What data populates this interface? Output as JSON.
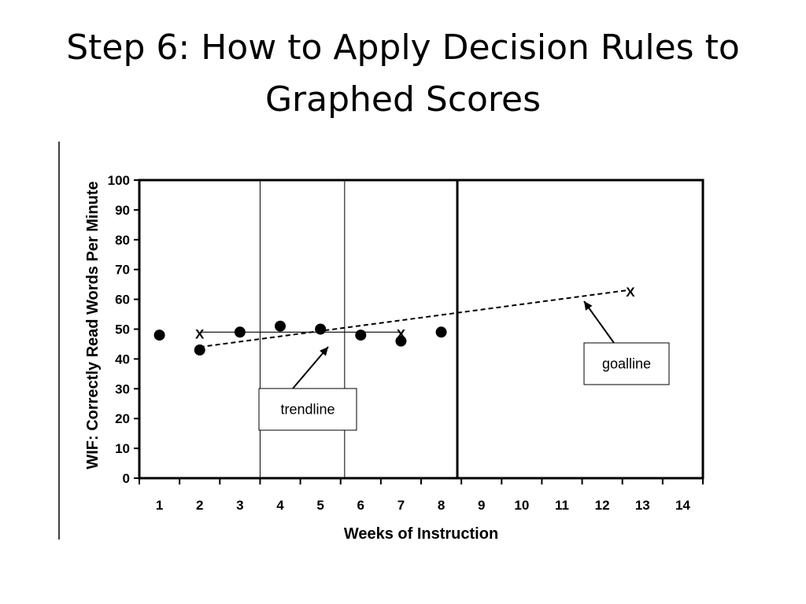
{
  "slide": {
    "title_line1": "Step 6: How to Apply Decision Rules to",
    "title_line2": "Graphed Scores"
  },
  "chart_data": {
    "type": "scatter",
    "xlabel": "Weeks of Instruction",
    "ylabel": "WIF: Correctly Read Words Per Minute",
    "xlim": [
      0.5,
      14.5
    ],
    "ylim": [
      0,
      100
    ],
    "x_ticks": [
      1,
      2,
      3,
      4,
      5,
      6,
      7,
      8,
      9,
      10,
      11,
      12,
      13,
      14
    ],
    "y_ticks": [
      0,
      10,
      20,
      30,
      40,
      50,
      60,
      70,
      80,
      90,
      100
    ],
    "grid": false,
    "points": [
      {
        "x": 1,
        "y": 48
      },
      {
        "x": 2,
        "y": 43
      },
      {
        "x": 3,
        "y": 49
      },
      {
        "x": 4,
        "y": 51
      },
      {
        "x": 5,
        "y": 50
      },
      {
        "x": 6,
        "y": 48
      },
      {
        "x": 7,
        "y": 46
      },
      {
        "x": 8,
        "y": 49
      }
    ],
    "baseline_markers": [
      {
        "x": 2,
        "y": 49,
        "label": "X"
      },
      {
        "x": 7,
        "y": 49,
        "label": "X"
      }
    ],
    "goal_marker": {
      "x": 12.7,
      "y": 63,
      "label": "X"
    },
    "trendline": {
      "x1": 2,
      "y1": 49,
      "x2": 7,
      "y2": 49
    },
    "goalline": {
      "x1": 2,
      "y1": 44,
      "x2": 12.6,
      "y2": 63
    },
    "phase_lines": [
      3.5,
      5.6
    ],
    "decision_line": 8.4,
    "annotations": {
      "trendline": "trendline",
      "goalline": "goalline"
    }
  }
}
